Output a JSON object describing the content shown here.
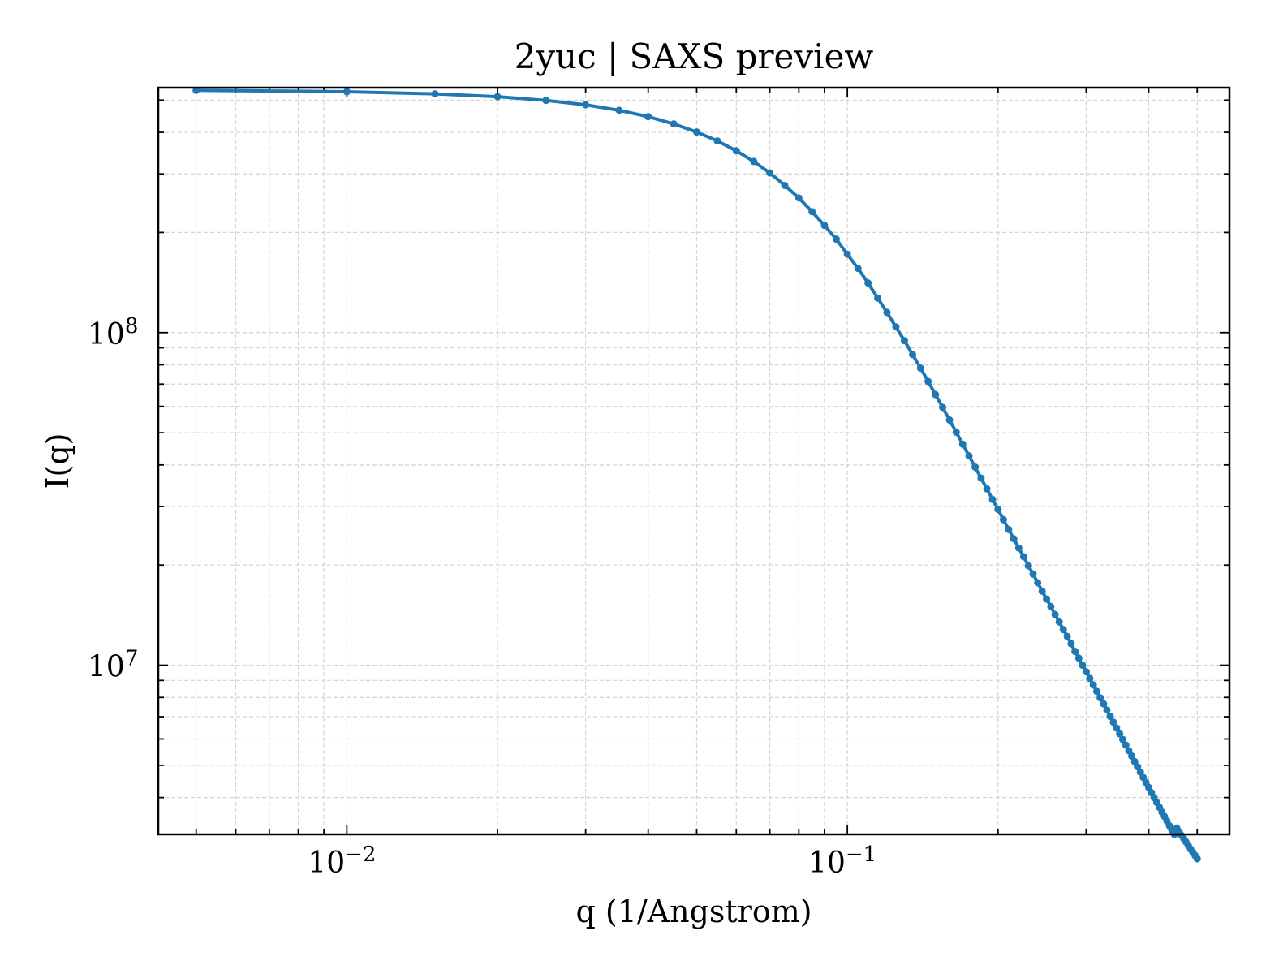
{
  "chart_data": {
    "type": "line",
    "title": "2yuc | SAXS preview",
    "xlabel": "q (1/Angstrom)",
    "ylabel": "I(q)",
    "xscale": "log",
    "yscale": "log",
    "xlim": [
      0.0042,
      0.58
    ],
    "ylim": [
      3100000,
      545000000
    ],
    "grid": true,
    "legend": "none",
    "x_ticks": [
      {
        "value": 0.01,
        "base": "10",
        "exp": "−2"
      },
      {
        "value": 0.1,
        "base": "10",
        "exp": "−1"
      }
    ],
    "y_ticks": [
      {
        "value": 10000000,
        "base": "10",
        "exp": "7"
      },
      {
        "value": 100000000,
        "base": "10",
        "exp": "8"
      }
    ],
    "series": [
      {
        "color": "#1f77b4",
        "x": [
          0.005,
          0.01,
          0.015,
          0.02,
          0.025,
          0.03,
          0.035,
          0.04,
          0.045,
          0.05,
          0.055,
          0.06,
          0.065,
          0.07,
          0.075,
          0.08,
          0.085,
          0.09,
          0.095,
          0.1,
          0.105,
          0.11,
          0.115,
          0.12,
          0.125,
          0.13,
          0.135,
          0.14,
          0.145,
          0.15,
          0.155,
          0.16,
          0.165,
          0.17,
          0.175,
          0.18,
          0.185,
          0.19,
          0.195,
          0.2,
          0.205,
          0.21,
          0.215,
          0.22,
          0.225,
          0.23,
          0.235,
          0.24,
          0.245,
          0.25,
          0.255,
          0.26,
          0.265,
          0.27,
          0.275,
          0.28,
          0.285,
          0.29,
          0.295,
          0.3,
          0.305,
          0.31,
          0.315,
          0.32,
          0.325,
          0.33,
          0.335,
          0.34,
          0.345,
          0.35,
          0.355,
          0.36,
          0.365,
          0.37,
          0.375,
          0.38,
          0.385,
          0.39,
          0.395,
          0.4,
          0.405,
          0.41,
          0.415,
          0.42,
          0.425,
          0.43,
          0.435,
          0.44,
          0.445,
          0.45,
          0.455,
          0.46,
          0.465,
          0.47,
          0.475,
          0.48,
          0.485,
          0.49,
          0.495,
          0.5
        ],
        "y": [
          535000000,
          530000000,
          522000000,
          512000000,
          499000000,
          484000000,
          466000000,
          446000000,
          424000000,
          401000000,
          377000000,
          352000000,
          327000000,
          302000000,
          277000000,
          254000000,
          231000000,
          210000000,
          191000000,
          172000000,
          156000000,
          141000000,
          127000000,
          115000000,
          104000000,
          94600000,
          85900000,
          78200000,
          71300000,
          65100000,
          59600000,
          54600000,
          50200000,
          46200000,
          42600000,
          39400000,
          36500000,
          33900000,
          31500000,
          29400000,
          27400000,
          25600000,
          24000000,
          22500000,
          21200000,
          19900000,
          18800000,
          17700000,
          16700000,
          15800000,
          15000000,
          14200000,
          13500000,
          12800000,
          12200000,
          11600000,
          11000000,
          10500000,
          10000000,
          9560000,
          9130000,
          8720000,
          8340000,
          7980000,
          7650000,
          7330000,
          7020000,
          6740000,
          6470000,
          6220000,
          5980000,
          5750000,
          5530000,
          5330000,
          5130000,
          4950000,
          4770000,
          4600000,
          4440000,
          4290000,
          4140000,
          4000000,
          3870000,
          3740000,
          3620000,
          3510000,
          3400000,
          3290000,
          3190000,
          3100000,
          3240000,
          3160000,
          3080000,
          3010000,
          2940000,
          2870000,
          2800000,
          2740000,
          2680000,
          2620000
        ]
      }
    ]
  }
}
